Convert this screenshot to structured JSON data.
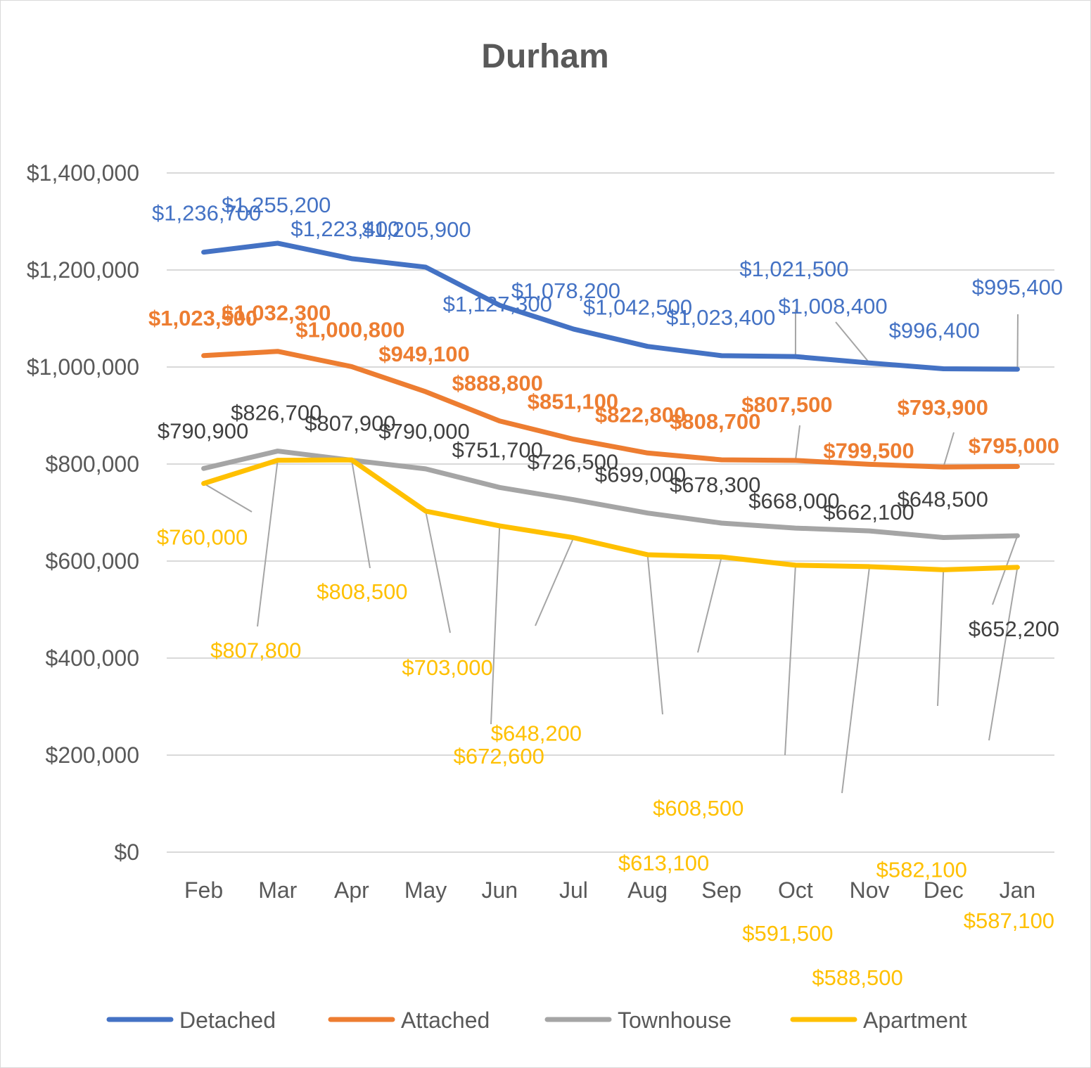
{
  "chart_data": {
    "type": "line",
    "title": "Durham",
    "xlabel": "",
    "ylabel": "",
    "ylim": [
      0,
      1400000
    ],
    "yticks": [
      0,
      200000,
      400000,
      600000,
      800000,
      1000000,
      1200000,
      1400000
    ],
    "ytick_labels": [
      "$0",
      "$200,000",
      "$400,000",
      "$600,000",
      "$800,000",
      "$1,000,000",
      "$1,200,000",
      "$1,400,000"
    ],
    "grid": true,
    "legend_position": "bottom",
    "categories": [
      "Feb",
      "Mar",
      "Apr",
      "May",
      "Jun",
      "Jul",
      "Aug",
      "Sep",
      "Oct",
      "Nov",
      "Dec",
      "Jan"
    ],
    "series": [
      {
        "name": "Detached",
        "color": "#4472C4",
        "bold_labels": false,
        "values": [
          1236700,
          1255200,
          1223400,
          1205900,
          1127300,
          1078200,
          1042500,
          1023400,
          1021500,
          1008400,
          996400,
          995400
        ],
        "labels": [
          "$1,236,700",
          "$1,255,200",
          "$1,223,400",
          "$1,205,900",
          "$1,127,300",
          "$1,078,200",
          "$1,042,500",
          "$1,023,400",
          "$1,021,500",
          "$1,008,400",
          "$996,400",
          "$995,400"
        ]
      },
      {
        "name": "Attached",
        "color": "#ED7D31",
        "bold_labels": true,
        "values": [
          1023500,
          1032300,
          1000800,
          949100,
          888800,
          851100,
          822800,
          808700,
          807500,
          799500,
          793900,
          795000
        ],
        "labels": [
          "$1,023,500",
          "$1,032,300",
          "$1,000,800",
          "$949,100",
          "$888,800",
          "$851,100",
          "$822,800",
          "$808,700",
          "$807,500",
          "$799,500",
          "$793,900",
          "$795,000"
        ]
      },
      {
        "name": "Townhouse",
        "color": "#A5A5A5",
        "label_color": "#404040",
        "bold_labels": false,
        "values": [
          790900,
          826700,
          807900,
          790000,
          751700,
          726500,
          699000,
          678300,
          668000,
          662100,
          648500,
          652200
        ],
        "labels": [
          "$790,900",
          "$826,700",
          "$807,900",
          "$790,000",
          "$751,700",
          "$726,500",
          "$699,000",
          "$678,300",
          "$668,000",
          "$662,100",
          "$648,500",
          "$652,200"
        ]
      },
      {
        "name": "Apartment",
        "color": "#FFC000",
        "bold_labels": false,
        "values": [
          760000,
          807800,
          808500,
          703000,
          672600,
          648200,
          613100,
          608500,
          591500,
          588500,
          582100,
          587100
        ],
        "labels": [
          "$760,000",
          "$807,800",
          "$808,500",
          "$703,000",
          "$672,600",
          "$648,200",
          "$613,100",
          "$608,500",
          "$591,500",
          "$588,500",
          "$582,100",
          "$587,100"
        ]
      }
    ]
  }
}
